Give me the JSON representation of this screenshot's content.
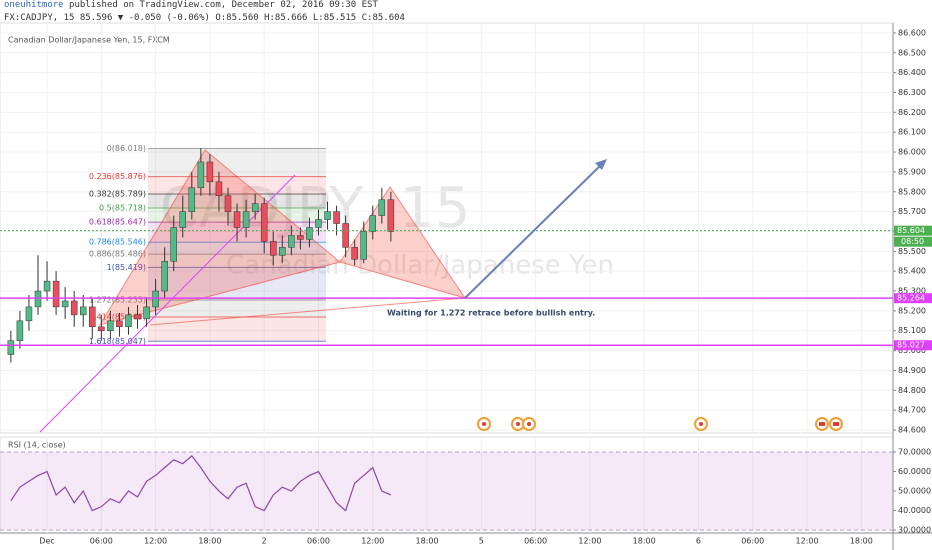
{
  "header": {
    "author": "oneuhitmore",
    "published": "published on TradingView.com, December 02, 2016 09:30 EST",
    "quote": "FX:CADJPY, 15 85.596 ▼ -0.050 (-0.06%) O:85.560 H:85.666 L:85.515 C:85.604"
  },
  "chart_data": [
    {
      "type": "candlestick",
      "title": "Canadian Dollar/Japanese Yen",
      "subtitle": "Canadian Dollar/Japanese Yen, 15, FXCM",
      "watermark": "CADJPY, 15",
      "up_color": "#53b987",
      "down_color": "#eb4d5c",
      "x": [
        -4,
        -3,
        -2,
        -1,
        0,
        1,
        2,
        3,
        4,
        5,
        6,
        7,
        8,
        9,
        10,
        11,
        12,
        13,
        14,
        15,
        16,
        17,
        18,
        19,
        20,
        21,
        22,
        23,
        24,
        25,
        26,
        27,
        28,
        29,
        30,
        31,
        32,
        33,
        34,
        35,
        36,
        37,
        38
      ],
      "open": [
        84.98,
        85.05,
        85.15,
        85.22,
        85.3,
        85.35,
        85.22,
        85.25,
        85.18,
        85.22,
        85.12,
        85.1,
        85.15,
        85.12,
        85.18,
        85.16,
        85.22,
        85.3,
        85.45,
        85.62,
        85.7,
        85.82,
        85.95,
        85.85,
        85.78,
        85.7,
        85.62,
        85.7,
        85.74,
        85.55,
        85.48,
        85.52,
        85.58,
        85.56,
        85.62,
        85.66,
        85.7,
        85.64,
        85.52,
        85.46,
        85.6,
        85.68,
        85.76
      ],
      "high": [
        85.1,
        85.2,
        85.28,
        85.48,
        85.45,
        85.4,
        85.32,
        85.3,
        85.28,
        85.26,
        85.18,
        85.2,
        85.19,
        85.22,
        85.23,
        85.27,
        85.36,
        85.52,
        85.68,
        85.78,
        85.9,
        86.02,
        85.99,
        85.9,
        85.82,
        85.74,
        85.76,
        85.79,
        85.77,
        85.6,
        85.58,
        85.63,
        85.62,
        85.67,
        85.71,
        85.75,
        85.73,
        85.68,
        85.56,
        85.65,
        85.73,
        85.82,
        85.8
      ],
      "low": [
        84.94,
        85.01,
        85.1,
        85.18,
        85.25,
        85.18,
        85.16,
        85.12,
        85.12,
        85.06,
        85.05,
        85.06,
        85.07,
        85.08,
        85.11,
        85.12,
        85.18,
        85.26,
        85.4,
        85.57,
        85.66,
        85.78,
        85.78,
        85.7,
        85.63,
        85.55,
        85.57,
        85.66,
        85.49,
        85.43,
        85.44,
        85.48,
        85.51,
        85.52,
        85.58,
        85.61,
        85.58,
        85.47,
        85.43,
        85.44,
        85.56,
        85.64,
        85.55
      ],
      "close": [
        85.05,
        85.15,
        85.22,
        85.3,
        85.35,
        85.22,
        85.25,
        85.18,
        85.22,
        85.12,
        85.1,
        85.15,
        85.12,
        85.18,
        85.16,
        85.22,
        85.3,
        85.45,
        85.62,
        85.7,
        85.82,
        85.95,
        85.85,
        85.78,
        85.7,
        85.62,
        85.7,
        85.74,
        85.55,
        85.48,
        85.52,
        85.58,
        85.56,
        85.62,
        85.66,
        85.7,
        85.64,
        85.52,
        85.46,
        85.6,
        85.68,
        85.76,
        85.6
      ],
      "xlim": [
        -5.2,
        93.5
      ],
      "xticks": [
        {
          "value": 0,
          "label": "Dec"
        },
        {
          "value": 6,
          "label": "06:00"
        },
        {
          "value": 12,
          "label": "12:00"
        },
        {
          "value": 18,
          "label": "18:00"
        },
        {
          "value": 24,
          "label": "2"
        },
        {
          "value": 30,
          "label": "06:00"
        },
        {
          "value": 36,
          "label": "12:00"
        },
        {
          "value": 42,
          "label": "18:00"
        },
        {
          "value": 48,
          "label": "5"
        },
        {
          "value": 54,
          "label": "06:00"
        },
        {
          "value": 60,
          "label": "12:00"
        },
        {
          "value": 66,
          "label": "18:00"
        },
        {
          "value": 72,
          "label": "6"
        },
        {
          "value": 78,
          "label": "06:00"
        },
        {
          "value": 84,
          "label": "12:00"
        },
        {
          "value": 90,
          "label": "18:00"
        }
      ],
      "ylim": [
        84.585,
        86.65
      ],
      "yticks": [
        {
          "value": 86.6,
          "label": "86.600"
        },
        {
          "value": 86.5,
          "label": "86.500"
        },
        {
          "value": 86.4,
          "label": "86.400"
        },
        {
          "value": 86.3,
          "label": "86.300"
        },
        {
          "value": 86.2,
          "label": "86.200"
        },
        {
          "value": 86.1,
          "label": "86.100"
        },
        {
          "value": 86.0,
          "label": "86.000"
        },
        {
          "value": 85.9,
          "label": "85.900"
        },
        {
          "value": 85.8,
          "label": "85.800"
        },
        {
          "value": 85.7,
          "label": "85.700"
        },
        {
          "value": 85.6,
          "label": "85.600"
        },
        {
          "value": 85.5,
          "label": "85.500"
        },
        {
          "value": 85.4,
          "label": "85.400"
        },
        {
          "value": 85.3,
          "label": "85.300"
        },
        {
          "value": 85.2,
          "label": "85.200"
        },
        {
          "value": 85.1,
          "label": "85.100"
        },
        {
          "value": 85.0,
          "label": "85.000"
        },
        {
          "value": 84.9,
          "label": "84.900"
        },
        {
          "value": 84.8,
          "label": "84.800"
        },
        {
          "value": 84.7,
          "label": "84.700"
        },
        {
          "value": 84.6,
          "label": "84.600"
        }
      ],
      "grid": true,
      "fib_levels": [
        {
          "label": "0(86.018)",
          "value": 86.018,
          "color": "#808080"
        },
        {
          "label": "0.236(85.876)",
          "value": 85.876,
          "color": "#e53935"
        },
        {
          "label": "0.382(85.789)",
          "value": 85.789,
          "color": "#333333"
        },
        {
          "label": "0.5(85.718)",
          "value": 85.718,
          "color": "#43a047"
        },
        {
          "label": "0.618(85.647)",
          "value": 85.647,
          "color": "#9c27b0"
        },
        {
          "label": "0.786(85.546)",
          "value": 85.546,
          "color": "#1e88e5"
        },
        {
          "label": "0.886(85.486)",
          "value": 85.486,
          "color": "#777777"
        },
        {
          "label": "1(85.419)",
          "value": 85.419,
          "color": "#3f51b5"
        },
        {
          "label": "1.272(85.255)",
          "value": 85.255,
          "color": "#777777"
        },
        {
          "label": "1.414(85.169)",
          "value": 85.169,
          "color": "#e53935"
        },
        {
          "label": "1.618(85.047)",
          "value": 85.047,
          "color": "#3f51b5"
        }
      ],
      "levels": [
        {
          "value": 85.264,
          "label": "85.264",
          "color": "#e040fb"
        },
        {
          "value": 85.027,
          "label": "85.027",
          "color": "#e040fb"
        },
        {
          "value": 85.604,
          "label": "85.604",
          "color": "#4caf50"
        }
      ],
      "last_time_label": "08:50",
      "annotation": "Waiting for 1.272 retrace before bullish entry."
    },
    {
      "type": "line",
      "title": "RSI (14, close)",
      "color": "#8e44ad",
      "x": [
        -4,
        -3,
        -2,
        -1,
        0,
        1,
        2,
        3,
        4,
        5,
        6,
        7,
        8,
        9,
        10,
        11,
        12,
        13,
        14,
        15,
        16,
        17,
        18,
        19,
        20,
        21,
        22,
        23,
        24,
        25,
        26,
        27,
        28,
        29,
        30,
        31,
        32,
        33,
        34,
        35,
        36,
        37,
        38
      ],
      "values": [
        45,
        52,
        55,
        58,
        60,
        48,
        52,
        44,
        50,
        40,
        42,
        46,
        44,
        50,
        47,
        55,
        58,
        62,
        66,
        64,
        68,
        62,
        55,
        50,
        46,
        52,
        54,
        42,
        40,
        48,
        52,
        50,
        55,
        58,
        60,
        52,
        44,
        40,
        54,
        58,
        62,
        50,
        48
      ],
      "band": [
        30,
        70
      ],
      "xlim": [
        -5.2,
        93.5
      ],
      "ylim": [
        28.5,
        77.7
      ],
      "yticks": [
        {
          "value": 70,
          "label": "70.0000"
        },
        {
          "value": 60,
          "label": "60.0000"
        },
        {
          "value": 50,
          "label": "50.0000"
        },
        {
          "value": 40,
          "label": "40.0000"
        },
        {
          "value": 30,
          "label": "30.0000"
        }
      ]
    }
  ]
}
